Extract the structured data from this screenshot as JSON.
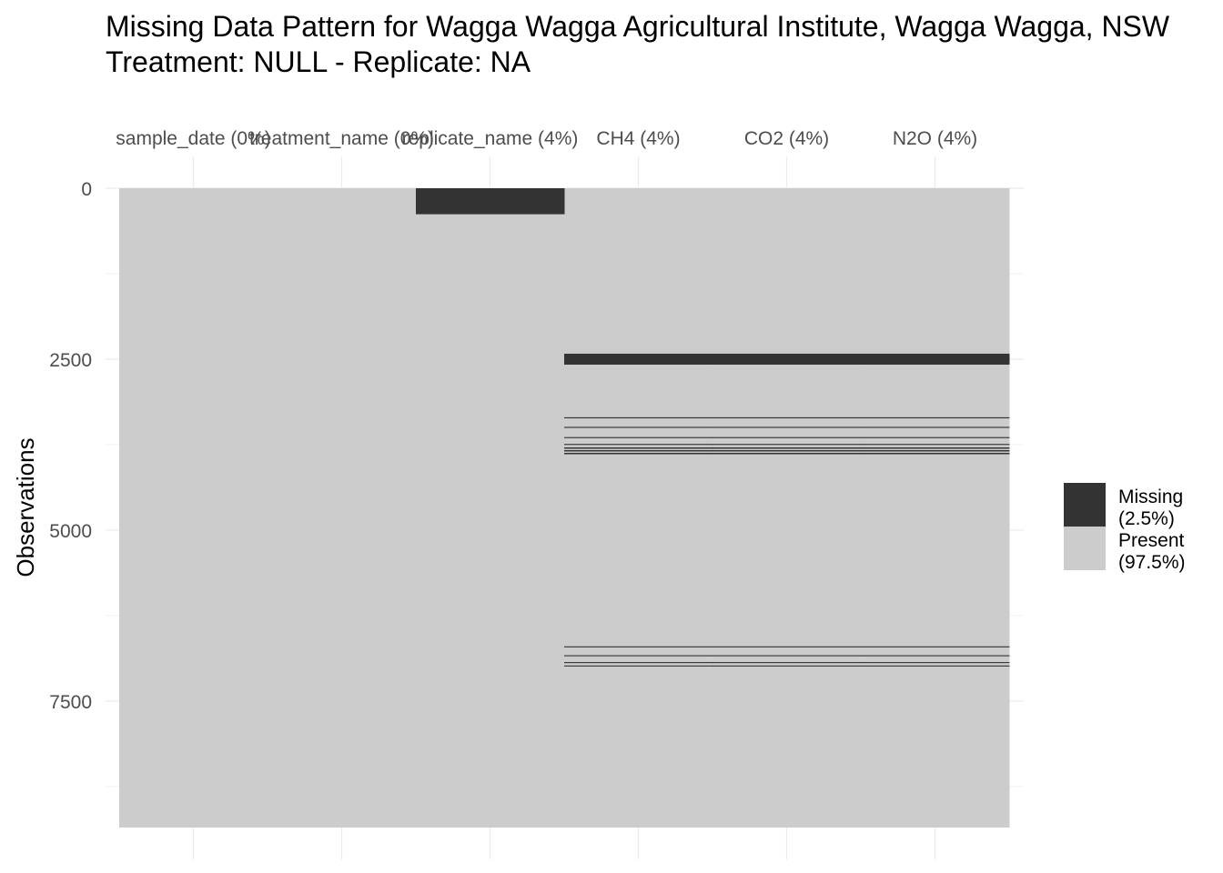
{
  "title_line1": "Missing Data Pattern for Wagga Wagga Agricultural Institute, Wagga Wagga, NSW",
  "title_line2": "Treatment: NULL - Replicate: NA",
  "chart_data": {
    "type": "heatmap",
    "ylabel": "Observations",
    "n_observations": 9350,
    "ylim": [
      0,
      9350
    ],
    "y_ticks": [
      0,
      2500,
      5000,
      7500
    ],
    "y_reversed": true,
    "grid": true,
    "legend_position": "right",
    "columns": [
      {
        "name": "sample_date",
        "label": "sample_date (0%)",
        "missing_pct": 0
      },
      {
        "name": "treatment_name",
        "label": "treatment_name (0%)",
        "missing_pct": 0
      },
      {
        "name": "replicate_name",
        "label": "replicate_name (4%)",
        "missing_pct": 4
      },
      {
        "name": "CH4",
        "label": "CH4 (4%)",
        "missing_pct": 4
      },
      {
        "name": "CO2",
        "label": "CO2 (4%)",
        "missing_pct": 4
      },
      {
        "name": "N2O",
        "label": "N2O (4%)",
        "missing_pct": 4
      }
    ],
    "missing_runs": [
      {
        "columns": [
          "replicate_name"
        ],
        "start": 0,
        "end": 380
      },
      {
        "columns": [
          "CH4",
          "CO2",
          "N2O"
        ],
        "start": 2420,
        "end": 2580
      },
      {
        "columns": [
          "CH4",
          "CO2",
          "N2O"
        ],
        "start": 3350,
        "end": 3365
      },
      {
        "columns": [
          "CH4",
          "CO2",
          "N2O"
        ],
        "start": 3490,
        "end": 3505
      },
      {
        "columns": [
          "CH4",
          "CO2",
          "N2O"
        ],
        "start": 3640,
        "end": 3655
      },
      {
        "columns": [
          "CH4",
          "CO2",
          "N2O"
        ],
        "start": 3740,
        "end": 3755
      },
      {
        "columns": [
          "CH4",
          "CO2",
          "N2O"
        ],
        "start": 3790,
        "end": 3810
      },
      {
        "columns": [
          "CH4",
          "CO2",
          "N2O"
        ],
        "start": 3830,
        "end": 3850
      },
      {
        "columns": [
          "CH4",
          "CO2",
          "N2O"
        ],
        "start": 3870,
        "end": 3890
      },
      {
        "columns": [
          "CH4",
          "CO2",
          "N2O"
        ],
        "start": 6700,
        "end": 6715
      },
      {
        "columns": [
          "CH4",
          "CO2",
          "N2O"
        ],
        "start": 6830,
        "end": 6845
      },
      {
        "columns": [
          "CH4",
          "CO2",
          "N2O"
        ],
        "start": 6930,
        "end": 6945
      },
      {
        "columns": [
          "CH4",
          "CO2",
          "N2O"
        ],
        "start": 6980,
        "end": 6995
      }
    ],
    "legend": [
      {
        "line1": "Missing",
        "line2": "(2.5%)",
        "color": "#333333"
      },
      {
        "line1": "Present",
        "line2": "(97.5%)",
        "color": "#cccccc"
      }
    ]
  }
}
